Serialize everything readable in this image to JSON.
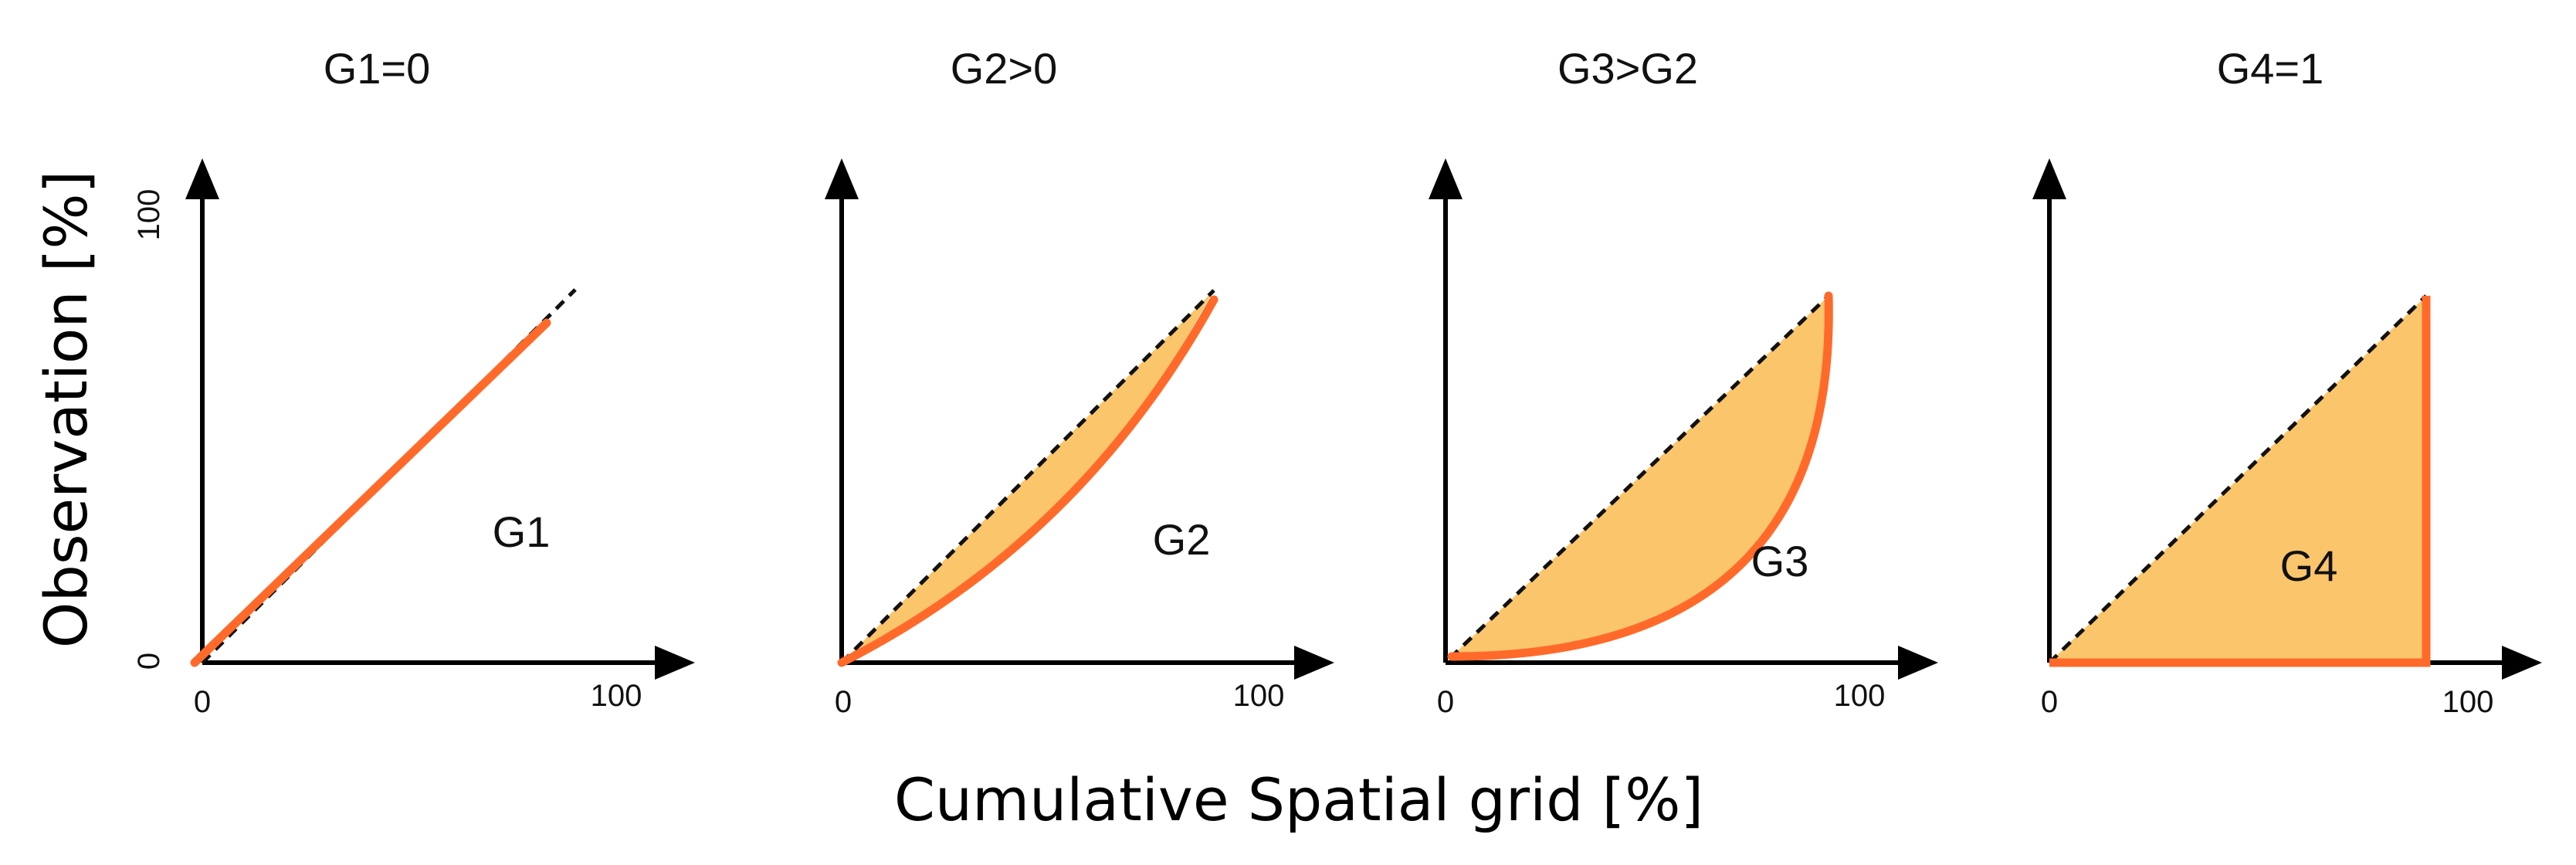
{
  "figure": {
    "y_axis_label": "Observation [%]",
    "x_axis_label": "Cumulative Spatial grid [%]",
    "colors": {
      "curve": "#ff6a2b",
      "fill": "#fbc56b",
      "axis": "#000000",
      "diagonal": "#111111"
    }
  },
  "panels": [
    {
      "title": "G1=0",
      "region_label": "G1",
      "x_min_tick": "0",
      "x_max_tick": "100",
      "y_min_tick": "0",
      "y_max_tick": "100",
      "curve": "equality"
    },
    {
      "title": "G2>0",
      "region_label": "G2",
      "x_min_tick": "0",
      "x_max_tick": "100",
      "curve": "slight-convex"
    },
    {
      "title": "G3>G2",
      "region_label": "G3",
      "x_min_tick": "0",
      "x_max_tick": "100",
      "curve": "strong-convex"
    },
    {
      "title": "G4=1",
      "region_label": "G4",
      "x_min_tick": "0",
      "x_max_tick": "100",
      "curve": "perfect-inequality"
    }
  ]
}
